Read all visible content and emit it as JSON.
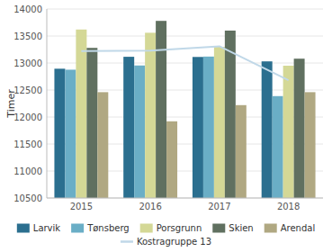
{
  "chart_data": {
    "type": "bar",
    "categories": [
      "2015",
      "2016",
      "2017",
      "2018"
    ],
    "series": [
      {
        "name": "Larvik",
        "type": "bar",
        "color": "#2b6f8f",
        "values": [
          12894,
          13115,
          13112,
          13030
        ]
      },
      {
        "name": "Tønsberg",
        "type": "bar",
        "color": "#6aaec6",
        "values": [
          12876,
          12954,
          13119,
          12387
        ]
      },
      {
        "name": "Porsgrunn",
        "type": "bar",
        "color": "#d4d896",
        "values": [
          13620,
          13560,
          13300,
          12950
        ]
      },
      {
        "name": "Skien",
        "type": "bar",
        "color": "#607060",
        "values": [
          13280,
          13780,
          13600,
          13080
        ]
      },
      {
        "name": "Arendal",
        "type": "bar",
        "color": "#b0a882",
        "values": [
          12460,
          11920,
          12220,
          12460
        ]
      },
      {
        "name": "Kostragruppe 13",
        "type": "line",
        "color": "#c0d8e8",
        "values": [
          13220,
          13230,
          13310,
          12680
        ]
      }
    ],
    "ylabel": "Timer",
    "ylim": [
      10500,
      14000
    ],
    "yticks": [
      10500,
      11000,
      11500,
      12000,
      12500,
      13000,
      13500,
      14000
    ],
    "grid": true,
    "legend": "bottom"
  }
}
